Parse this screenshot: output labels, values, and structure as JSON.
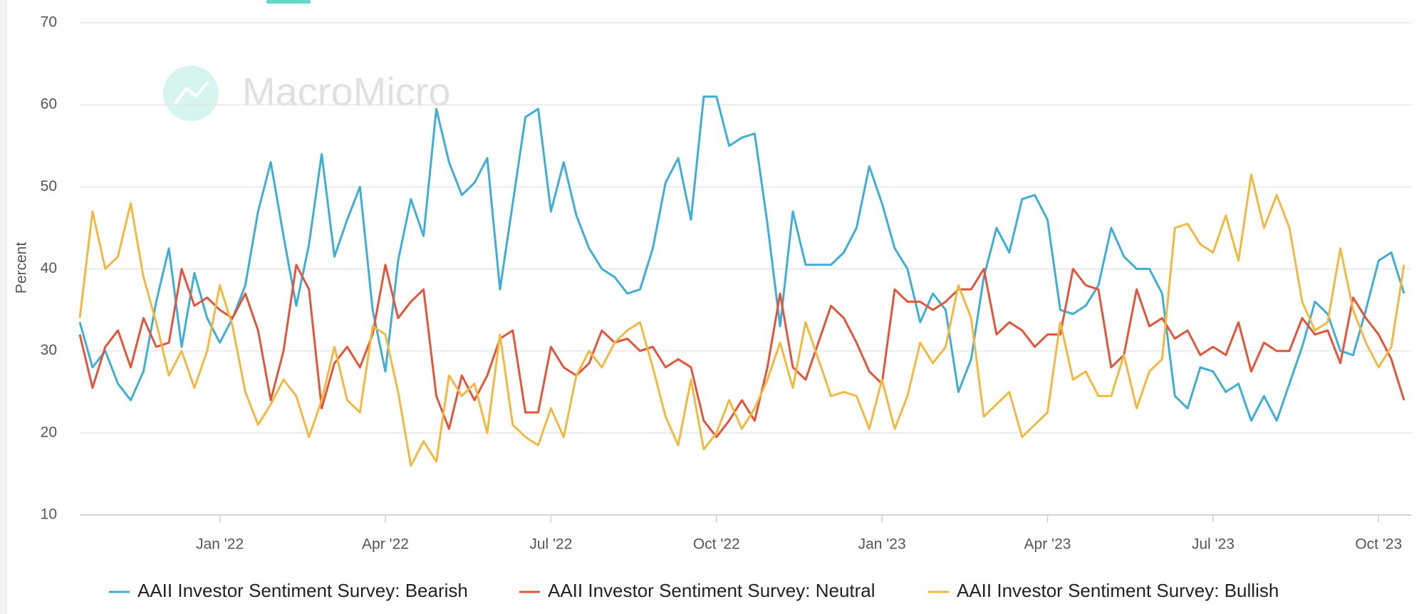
{
  "chart_data": {
    "type": "line",
    "watermark": "MacroMicro",
    "y_label": "Percent",
    "categories": [
      null,
      null,
      null,
      null,
      null,
      null,
      null,
      null,
      null,
      null,
      null,
      "Jan '22",
      null,
      null,
      null,
      null,
      null,
      null,
      null,
      null,
      null,
      null,
      null,
      null,
      "Apr '22",
      null,
      null,
      null,
      null,
      null,
      null,
      null,
      null,
      null,
      null,
      null,
      null,
      "Jul '22",
      null,
      null,
      null,
      null,
      null,
      null,
      null,
      null,
      null,
      null,
      null,
      null,
      "Oct '22",
      null,
      null,
      null,
      null,
      null,
      null,
      null,
      null,
      null,
      null,
      null,
      null,
      "Jan '23",
      null,
      null,
      null,
      null,
      null,
      null,
      null,
      null,
      null,
      null,
      null,
      null,
      "Apr '23",
      null,
      null,
      null,
      null,
      null,
      null,
      null,
      null,
      null,
      null,
      null,
      null,
      "Jul '23",
      null,
      null,
      null,
      null,
      null,
      null,
      null,
      null,
      null,
      null,
      null,
      null,
      "Oct '23",
      null,
      null
    ],
    "series": [
      {
        "name": "AAII Investor Sentiment Survey: Bearish",
        "color": "#3eaed5",
        "values": [
          33.5,
          28,
          30,
          26,
          24,
          27.5,
          36,
          42.5,
          30.5,
          39.5,
          34,
          31,
          34,
          38,
          47,
          53,
          44,
          35.5,
          43,
          54,
          41.5,
          46,
          50,
          35,
          27.5,
          41,
          48.5,
          44,
          59.5,
          53,
          49,
          50.5,
          53.5,
          37.5,
          48,
          58.5,
          59.5,
          47,
          53,
          46.5,
          42.5,
          40,
          39,
          37,
          37.5,
          42.5,
          50.5,
          53.5,
          46,
          61,
          61,
          55,
          56,
          56.5,
          45.5,
          33,
          47,
          40.5,
          40.5,
          40.5,
          42,
          45,
          52.5,
          48,
          42.5,
          40,
          33.5,
          37,
          35,
          25,
          29,
          39,
          45,
          42,
          48.5,
          49,
          46,
          35,
          34.5,
          35.5,
          38,
          45,
          41.5,
          40,
          40,
          37,
          24.5,
          23,
          28,
          27.5,
          25,
          26,
          21.5,
          24.5,
          21.5,
          26,
          30.5,
          36,
          34.5,
          30,
          29.5,
          35,
          41,
          42,
          37
        ]
      },
      {
        "name": "AAII Investor Sentiment Survey: Neutral",
        "color": "#e2553a",
        "values": [
          32,
          25.5,
          30.5,
          32.5,
          28,
          34,
          30.5,
          31,
          40,
          35.5,
          36.5,
          35,
          34,
          37,
          32.5,
          24,
          30,
          40.5,
          37.5,
          23,
          28.5,
          30.5,
          28,
          32,
          40.5,
          34,
          36,
          37.5,
          24.5,
          20.5,
          27,
          24,
          27,
          31.5,
          32.5,
          22.5,
          22.5,
          30.5,
          28,
          27,
          28.5,
          32.5,
          31,
          31.5,
          30,
          30.5,
          28,
          29,
          28,
          21.5,
          19.5,
          21.5,
          24,
          21.5,
          28,
          37,
          28,
          26.5,
          31,
          35.5,
          34,
          31,
          27.5,
          26,
          37.5,
          36,
          36,
          35,
          36,
          37.5,
          37.5,
          40,
          32,
          33.5,
          32.5,
          30.5,
          32,
          32,
          40,
          38,
          37.5,
          28,
          29.5,
          37.5,
          33,
          34,
          31.5,
          32.5,
          29.5,
          30.5,
          29.5,
          33.5,
          27.5,
          31,
          30,
          30,
          34,
          32,
          32.5,
          28.5,
          36.5,
          34,
          32,
          29,
          24
        ]
      },
      {
        "name": "AAII Investor Sentiment Survey: Bullish",
        "color": "#f2b83f",
        "values": [
          34,
          47,
          40,
          41.5,
          48,
          39,
          33.5,
          27,
          30,
          25.5,
          30,
          38,
          33,
          25,
          21,
          23.5,
          26.5,
          24.5,
          19.5,
          24,
          30.5,
          24,
          22.5,
          33,
          32,
          25,
          16,
          19,
          16.5,
          27,
          24.5,
          26,
          20,
          32,
          21,
          19.5,
          18.5,
          23,
          19.5,
          27,
          30,
          28,
          31,
          32.5,
          33.5,
          28,
          22,
          18.5,
          26.5,
          18,
          20,
          24,
          20.5,
          23,
          26.5,
          31,
          25.5,
          33.5,
          29,
          24.5,
          25,
          24.5,
          20.5,
          26.5,
          20.5,
          24.5,
          31,
          28.5,
          30.5,
          38,
          34,
          22,
          23.5,
          25,
          19.5,
          21,
          22.5,
          33.5,
          26.5,
          27.5,
          24.5,
          24.5,
          29.5,
          23,
          27.5,
          29,
          45,
          45.5,
          43,
          42,
          46.5,
          41,
          51.5,
          45,
          49,
          45,
          36,
          32.5,
          33.5,
          42.5,
          35,
          31,
          28,
          30.5,
          40.5
        ]
      }
    ],
    "ylim": [
      10,
      70
    ],
    "yticks": [
      10,
      20,
      30,
      40,
      50,
      60,
      70
    ],
    "grid": true,
    "legend": "bottom"
  }
}
